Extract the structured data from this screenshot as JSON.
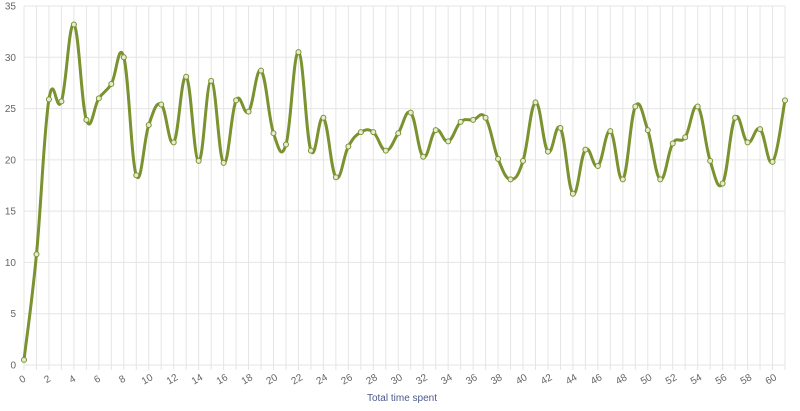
{
  "chart_data": {
    "type": "line",
    "title": "",
    "xlabel": "Total time spent",
    "ylabel": "",
    "xlim": [
      0,
      61
    ],
    "ylim": [
      0,
      35
    ],
    "x_ticks": [
      0,
      2,
      4,
      6,
      8,
      10,
      12,
      14,
      16,
      18,
      20,
      22,
      24,
      26,
      28,
      30,
      32,
      34,
      36,
      38,
      40,
      42,
      44,
      46,
      48,
      50,
      52,
      54,
      56,
      58,
      60
    ],
    "x_tick_labels": [
      "0",
      "2",
      "4",
      "6",
      "8",
      "10",
      "12",
      "14",
      "16",
      "18",
      "20",
      "22",
      "24",
      "26",
      "28",
      "30",
      "32",
      "34",
      "36",
      "38",
      "40",
      "42",
      "44",
      "46",
      "48",
      "50",
      "52",
      "54",
      "56",
      "58",
      "60"
    ],
    "y_ticks": [
      0,
      5,
      10,
      15,
      20,
      25,
      30,
      35
    ],
    "y_tick_labels": [
      "0",
      "5",
      "10",
      "15",
      "20",
      "25",
      "30",
      "35"
    ],
    "grid": true,
    "legend": "none",
    "series": [
      {
        "color": "#7a922f",
        "x": [
          0,
          1,
          2,
          3,
          4,
          5,
          6,
          7,
          8,
          9,
          10,
          11,
          12,
          13,
          14,
          15,
          16,
          17,
          18,
          19,
          20,
          21,
          22,
          23,
          24,
          25,
          26,
          27,
          28,
          29,
          30,
          31,
          32,
          33,
          34,
          35,
          36,
          37,
          38,
          39,
          40,
          41,
          42,
          43,
          44,
          45,
          46,
          47,
          48,
          49,
          50,
          51,
          52,
          53,
          54,
          55,
          56,
          57,
          58,
          59,
          60,
          61
        ],
        "values": [
          0.5,
          10.8,
          25.9,
          25.7,
          33.2,
          23.9,
          26.0,
          27.4,
          30.0,
          18.5,
          23.4,
          25.4,
          21.7,
          28.1,
          19.9,
          27.7,
          19.7,
          25.8,
          24.7,
          28.7,
          22.6,
          21.5,
          30.5,
          20.9,
          24.1,
          18.3,
          21.3,
          22.7,
          22.7,
          20.9,
          22.6,
          24.6,
          20.3,
          22.9,
          21.8,
          23.7,
          23.9,
          24.1,
          20.1,
          18.1,
          19.9,
          25.6,
          20.8,
          23.1,
          16.7,
          21.0,
          19.4,
          22.8,
          18.1,
          25.2,
          22.9,
          18.1,
          21.6,
          22.2,
          25.2,
          19.9,
          17.7,
          24.1,
          21.7,
          23.0,
          19.8,
          25.8
        ]
      }
    ]
  }
}
